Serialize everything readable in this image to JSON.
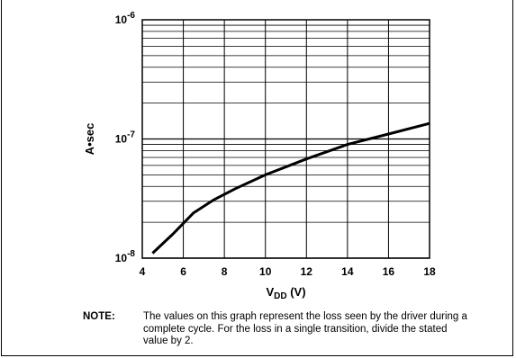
{
  "chart_data": {
    "type": "line",
    "title": "",
    "xlabel": "V",
    "xlabel_sub": "DD",
    "xlabel_suffix": " (V)",
    "ylabel": "A•sec",
    "xlim": [
      4,
      18
    ],
    "ylim": [
      1e-08,
      1e-06
    ],
    "yscale": "log",
    "grid": true,
    "x_ticks": [
      4,
      6,
      8,
      10,
      12,
      14,
      16,
      18
    ],
    "y_ticks": [
      {
        "base": "10",
        "exp": "-8",
        "value": 1e-08
      },
      {
        "base": "10",
        "exp": "-7",
        "value": 1e-07
      },
      {
        "base": "10",
        "exp": "-6",
        "value": 1e-06
      }
    ],
    "series": [
      {
        "x": [
          4.5,
          5.5,
          6.5,
          7.5,
          8.5,
          10,
          12,
          14,
          16,
          18
        ],
        "y": [
          1.1e-08,
          1.6e-08,
          2.4e-08,
          3.1e-08,
          3.8e-08,
          5e-08,
          6.8e-08,
          9e-08,
          1.1e-07,
          1.35e-07
        ]
      }
    ]
  },
  "note": {
    "label": "NOTE:",
    "text": "The values on this graph represent the loss seen by the driver during a complete cycle. For the loss in a single transition, divide the stated value by 2."
  }
}
